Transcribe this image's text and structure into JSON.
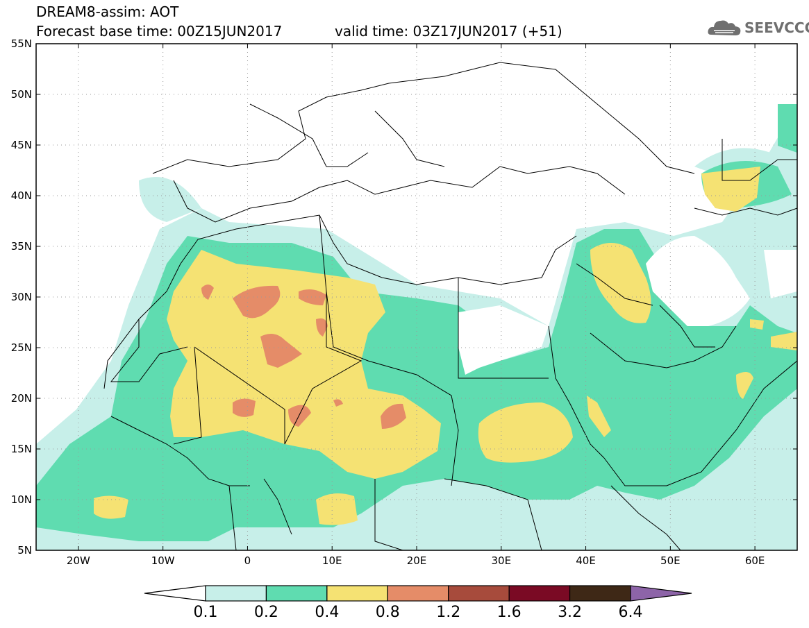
{
  "header": {
    "title": "DREAM8-assim: AOT",
    "base_time": "Forecast base time: 00Z15JUN2017",
    "valid_time": "valid time: 03Z17JUN2017 (+51)"
  },
  "logo": {
    "text": "SEEVCCC",
    "icon": "cloud-icon"
  },
  "axes": {
    "lat_labels": [
      "55N",
      "50N",
      "45N",
      "40N",
      "35N",
      "30N",
      "25N",
      "20N",
      "15N",
      "10N",
      "5N"
    ],
    "lon_labels": [
      "20W",
      "10W",
      "0",
      "10E",
      "20E",
      "30E",
      "40E",
      "50E",
      "60E"
    ]
  },
  "colorbar": {
    "labels": [
      "0.1",
      "0.2",
      "0.4",
      "0.8",
      "1.2",
      "1.6",
      "3.2",
      "6.4"
    ],
    "colors": [
      "#c7efe9",
      "#5fdcb0",
      "#f5e273",
      "#e58c68",
      "#a74b3c",
      "#7a0a24",
      "#3e2816",
      "#8d64a8"
    ]
  },
  "colors": {
    "ocean": "#ffffff",
    "lev1": "#c7efe9",
    "lev2": "#5fdcb0",
    "lev3": "#f5e273",
    "lev4": "#e58c68",
    "border": "#000000"
  }
}
